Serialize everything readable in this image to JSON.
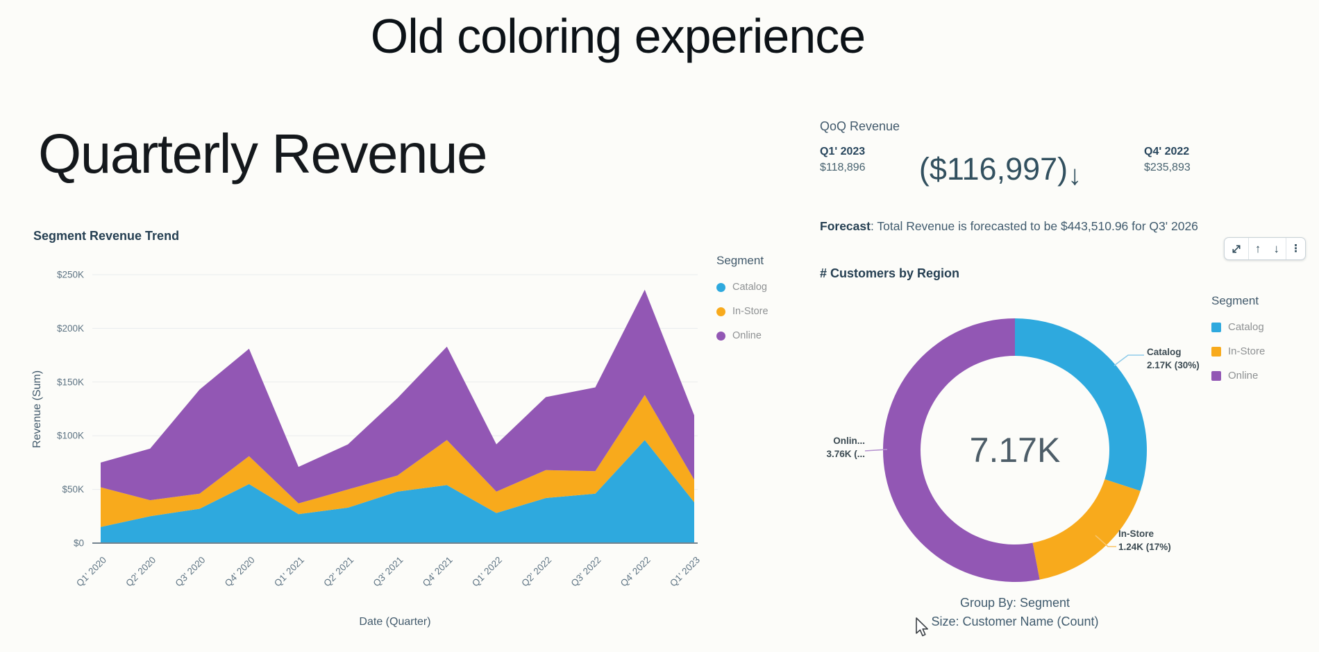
{
  "page": {
    "title": "Old coloring experience",
    "background": "#fcfcf9"
  },
  "colors": {
    "catalog": "#2ea9de",
    "in_store": "#f8aa1c",
    "online": "#9257b4",
    "heading_dark": "#253f52",
    "text_mid": "#3f5a6d"
  },
  "left_panel": {
    "title": "Quarterly Revenue",
    "chart_title": "Segment Revenue Trend",
    "legend": {
      "title": "Segment",
      "items": [
        {
          "label": "Catalog",
          "color": "#2ea9de"
        },
        {
          "label": "In-Store",
          "color": "#f8aa1c"
        },
        {
          "label": "Online",
          "color": "#9257b4"
        }
      ]
    }
  },
  "kpi": {
    "title": "QoQ Revenue",
    "primary_period": "Q1' 2023",
    "primary_value": "$118,896",
    "delta": "($116,997)",
    "delta_arrow": "↓",
    "secondary_period": "Q4' 2022",
    "secondary_value": "$235,893"
  },
  "forecast": {
    "label": "Forecast",
    "text": ": Total Revenue is forecasted to be $443,510.96 for Q3' 2026"
  },
  "toolbar": {
    "arrow_up": "↑",
    "arrow_down": "↓",
    "kebab": "⋮",
    "icons": [
      "expand-icon",
      "arrow-up-icon",
      "arrow-down-icon",
      "kebab-menu-icon"
    ]
  },
  "donut_panel": {
    "title": "# Customers by Region",
    "center_label": "7.17K",
    "labels": {
      "catalog": {
        "line1": "Catalog",
        "line2": "2.17K (30%)"
      },
      "in_store": {
        "line1": "In-Store",
        "line2": "1.24K (17%)"
      },
      "online": {
        "line1": "Onlin...",
        "line2": "3.76K (..."
      }
    },
    "legend": {
      "title": "Segment",
      "items": [
        {
          "label": "Catalog",
          "color": "#2ea9de"
        },
        {
          "label": "In-Store",
          "color": "#f8aa1c"
        },
        {
          "label": "Online",
          "color": "#9257b4"
        }
      ]
    },
    "footer_line1": "Group By: Segment",
    "footer_line2": "Size: Customer Name (Count)"
  },
  "chart_data": [
    {
      "type": "area",
      "stacked": true,
      "title": "Segment Revenue Trend",
      "xlabel": "Date (Quarter)",
      "ylabel": "Revenue (Sum)",
      "ylim": [
        0,
        250000
      ],
      "grid": true,
      "legend_position": "right",
      "y_ticks": [
        "$250K",
        "$200K",
        "$150K",
        "$100K",
        "$50K",
        "$0"
      ],
      "categories": [
        "Q1' 2020",
        "Q2' 2020",
        "Q3' 2020",
        "Q4' 2020",
        "Q1' 2021",
        "Q2' 2021",
        "Q3' 2021",
        "Q4' 2021",
        "Q1' 2022",
        "Q2' 2022",
        "Q3' 2022",
        "Q4' 2022",
        "Q1' 2023"
      ],
      "series": [
        {
          "name": "Catalog",
          "color": "#2ea9de",
          "values": [
            15000,
            25000,
            32000,
            55000,
            27000,
            33000,
            48000,
            54000,
            28000,
            42000,
            46000,
            96000,
            38000
          ]
        },
        {
          "name": "In-Store",
          "color": "#f8aa1c",
          "values": [
            37000,
            15000,
            14000,
            26000,
            10000,
            17000,
            15000,
            42000,
            20000,
            26000,
            21000,
            42000,
            21000
          ]
        },
        {
          "name": "Online",
          "color": "#9257b4",
          "values": [
            23000,
            48000,
            97000,
            100000,
            34000,
            42000,
            72000,
            87000,
            44000,
            68000,
            78000,
            98000,
            60000
          ]
        }
      ],
      "stacked_totals": [
        75000,
        88000,
        143000,
        181000,
        71000,
        92000,
        135000,
        183000,
        92000,
        136000,
        145000,
        236000,
        119000
      ]
    },
    {
      "type": "pie",
      "subtype": "donut",
      "title": "# Customers by Region",
      "center_total": "7.17K",
      "start_angle": "12 o'clock, clockwise",
      "slices": [
        {
          "label": "Catalog",
          "value": 2170,
          "percent": 30,
          "color": "#2ea9de"
        },
        {
          "label": "In-Store",
          "value": 1240,
          "percent": 17,
          "color": "#f8aa1c"
        },
        {
          "label": "Online",
          "value": 3760,
          "percent": 53,
          "color": "#9257b4"
        }
      ],
      "group_by": "Segment",
      "size_by": "Customer Name (Count)"
    }
  ]
}
